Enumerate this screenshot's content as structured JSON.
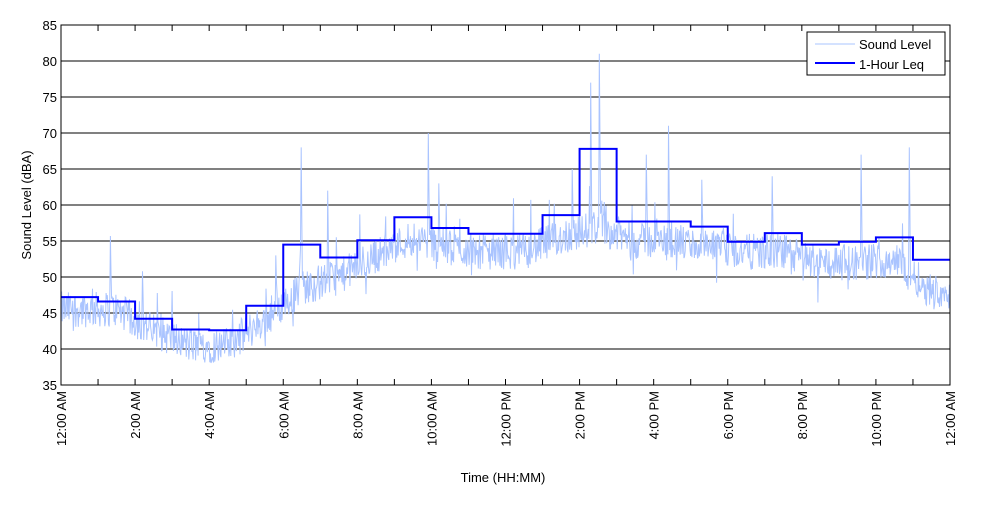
{
  "chart_data": {
    "type": "line",
    "title": "",
    "xlabel": "Time (HH:MM)",
    "ylabel": "Sound Level (dBA)",
    "xlim_hours": [
      0,
      24
    ],
    "ylim": [
      35,
      85
    ],
    "yticks": [
      35,
      40,
      45,
      50,
      55,
      60,
      65,
      70,
      75,
      80,
      85
    ],
    "xticks_hours": [
      0,
      1,
      2,
      3,
      4,
      5,
      6,
      7,
      8,
      9,
      10,
      11,
      12,
      13,
      14,
      15,
      16,
      17,
      18,
      19,
      20,
      21,
      22,
      23,
      24
    ],
    "xtick_labels": [
      "12:00 AM",
      "2:00 AM",
      "4:00 AM",
      "6:00 AM",
      "8:00 AM",
      "10:00 AM",
      "12:00 PM",
      "2:00 PM",
      "4:00 PM",
      "6:00 PM",
      "8:00 PM",
      "10:00 PM",
      "12:00 AM"
    ],
    "grid": "horizontal",
    "legend_position": "top-right",
    "series": [
      {
        "name": "Sound Level",
        "color": "#aac4ff",
        "hourly_baseline": [
          45.5,
          45.5,
          42.5,
          40.5,
          40.5,
          44,
          48.5,
          50,
          53,
          55.5,
          54,
          53.5,
          53.5,
          55.5,
          57,
          55,
          55,
          54,
          53.5,
          53.5,
          52,
          52,
          52.5,
          48
        ],
        "peaks": [
          [
            1.33,
            55.7
          ],
          [
            2.2,
            50.8
          ],
          [
            5.8,
            53
          ],
          [
            6.48,
            68
          ],
          [
            7.2,
            62
          ],
          [
            9.92,
            70
          ],
          [
            10.2,
            63
          ],
          [
            13.8,
            65
          ],
          [
            14.3,
            77
          ],
          [
            14.54,
            81
          ],
          [
            15.8,
            67
          ],
          [
            16.4,
            71
          ],
          [
            17.3,
            63.5
          ],
          [
            19.2,
            64
          ],
          [
            21.6,
            67
          ],
          [
            22.9,
            68
          ]
        ]
      },
      {
        "name": "1-Hour Leq",
        "color": "#0000ff",
        "values": [
          47.2,
          46.6,
          44.2,
          42.7,
          42.6,
          46.0,
          54.5,
          52.7,
          55.1,
          58.3,
          56.8,
          56.0,
          56.0,
          58.6,
          67.8,
          57.7,
          57.7,
          57.0,
          54.9,
          56.1,
          54.5,
          54.9,
          55.5,
          52.4
        ]
      }
    ]
  }
}
